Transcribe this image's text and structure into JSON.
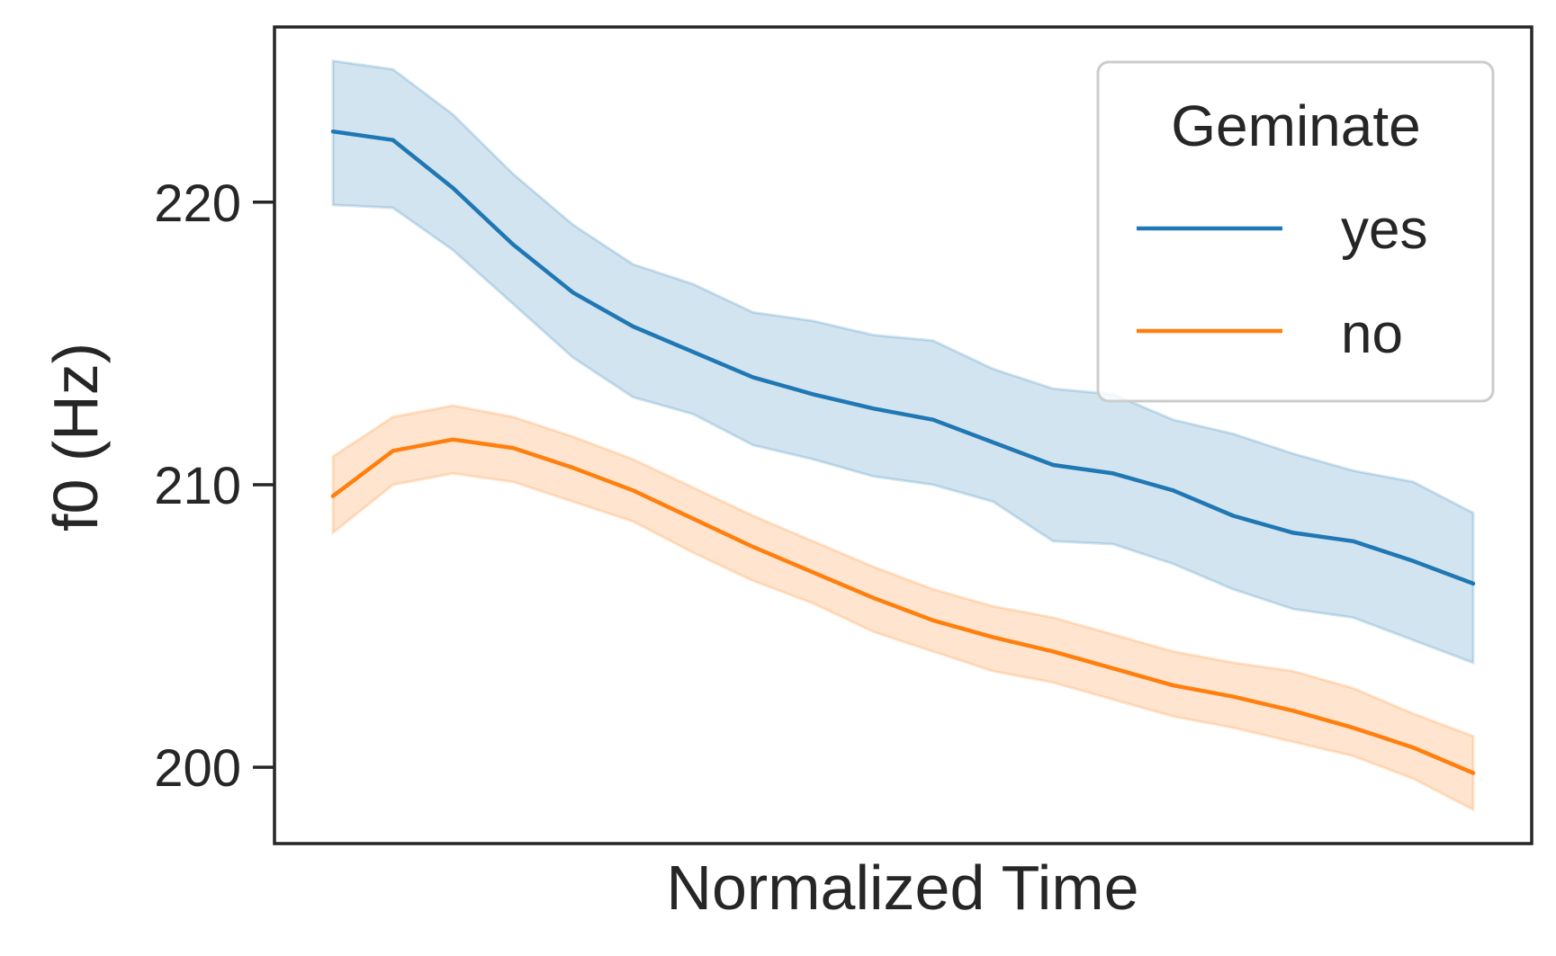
{
  "chart_data": {
    "type": "line",
    "xlabel": "Normalized Time",
    "ylabel": "f0 (Hz)",
    "ylim": [
      197.3,
      226.2
    ],
    "yticks": [
      200,
      210,
      220
    ],
    "x": [
      1,
      2,
      3,
      4,
      5,
      6,
      7,
      8,
      9,
      10,
      11,
      12,
      13,
      14,
      15,
      16,
      17,
      18,
      19,
      20
    ],
    "legend": {
      "title": "Geminate",
      "position": "top-right"
    },
    "grid": false,
    "series": [
      {
        "name": "yes",
        "color": "#1f77b4",
        "values": [
          222.5,
          222.2,
          220.5,
          218.5,
          216.8,
          215.6,
          214.7,
          213.8,
          213.2,
          212.7,
          212.3,
          211.5,
          210.7,
          210.4,
          209.8,
          208.9,
          208.3,
          208.0,
          207.3,
          206.5
        ],
        "ci_low": [
          219.9,
          219.8,
          218.3,
          216.4,
          214.5,
          213.1,
          212.5,
          211.4,
          210.9,
          210.3,
          210.0,
          209.4,
          208.0,
          207.9,
          207.2,
          206.3,
          205.6,
          205.3,
          204.5,
          203.7
        ],
        "ci_high": [
          225.0,
          224.7,
          223.1,
          221.0,
          219.2,
          217.8,
          217.1,
          216.1,
          215.8,
          215.3,
          215.1,
          214.1,
          213.4,
          213.2,
          212.3,
          211.8,
          211.1,
          210.5,
          210.1,
          209.0
        ]
      },
      {
        "name": "no",
        "color": "#ff7f0e",
        "values": [
          209.6,
          211.2,
          211.6,
          211.3,
          210.6,
          209.8,
          208.8,
          207.8,
          206.9,
          206.0,
          205.2,
          204.6,
          204.1,
          203.5,
          202.9,
          202.5,
          202.0,
          201.4,
          200.7,
          199.8
        ],
        "ci_low": [
          208.3,
          210.0,
          210.4,
          210.1,
          209.4,
          208.7,
          207.6,
          206.6,
          205.8,
          204.8,
          204.1,
          203.4,
          203.0,
          202.4,
          201.8,
          201.4,
          200.9,
          200.4,
          199.6,
          198.5
        ],
        "ci_high": [
          211.0,
          212.4,
          212.8,
          212.4,
          211.7,
          210.9,
          209.9,
          208.9,
          208.0,
          207.1,
          206.3,
          205.7,
          205.3,
          204.7,
          204.1,
          203.7,
          203.4,
          202.8,
          201.9,
          201.1
        ]
      }
    ]
  }
}
